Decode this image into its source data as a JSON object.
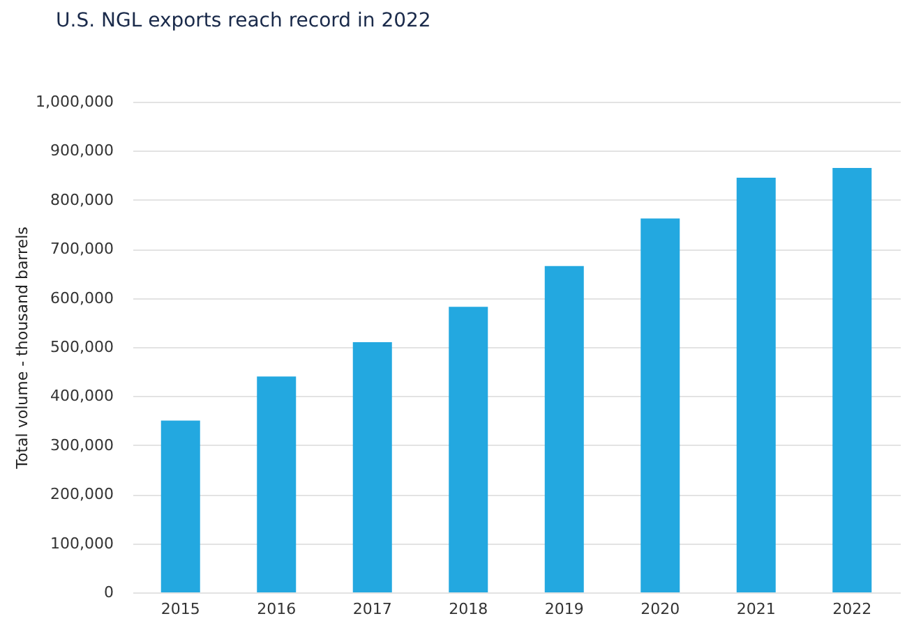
{
  "chart_data": {
    "type": "bar",
    "title": "U.S. NGL exports reach record in 2022",
    "ylabel": "Total volume - thousand barrels",
    "categories": [
      "2015",
      "2016",
      "2017",
      "2018",
      "2019",
      "2020",
      "2021",
      "2022"
    ],
    "series": [
      {
        "color": "#23a8e0",
        "values": [
          350000,
          440000,
          510000,
          582000,
          665000,
          762000,
          845000,
          865000
        ]
      }
    ],
    "ylim": [
      0,
      1000000
    ],
    "yticks": [
      0,
      {
        "value": 100000,
        "label": "100,000"
      },
      {
        "value": 200000,
        "label": "200,000"
      },
      {
        "value": 300000,
        "label": "300,000"
      },
      {
        "value": 400000,
        "label": "400,000"
      },
      {
        "value": 500000,
        "label": "500,000"
      },
      {
        "value": 600000,
        "label": "600,000"
      },
      {
        "value": 700000,
        "label": "700,000"
      },
      {
        "value": 800000,
        "label": "800,000"
      },
      {
        "value": 900000,
        "label": "900,000"
      },
      {
        "value": 1000000,
        "label": "1,000,000"
      }
    ],
    "grid": "y"
  }
}
